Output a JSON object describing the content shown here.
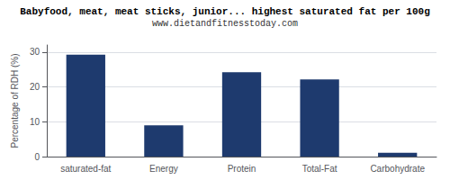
{
  "chart_data": {
    "type": "bar",
    "title": "Babyfood, meat, meat sticks, junior... highest saturated fat per 100g",
    "subtitle": "www.dietandfitnesstoday.com",
    "ylabel": "Percentage of RDH (%)",
    "categories": [
      "saturated-fat",
      "Energy",
      "Protein",
      "Total-Fat",
      "Carbohydrate"
    ],
    "values": [
      29.2,
      9.0,
      24.2,
      22.1,
      1.1
    ],
    "color": "#1e3a6e",
    "ylim": [
      0,
      32
    ],
    "yticks": [
      0,
      10,
      20,
      30
    ],
    "grid": true
  }
}
